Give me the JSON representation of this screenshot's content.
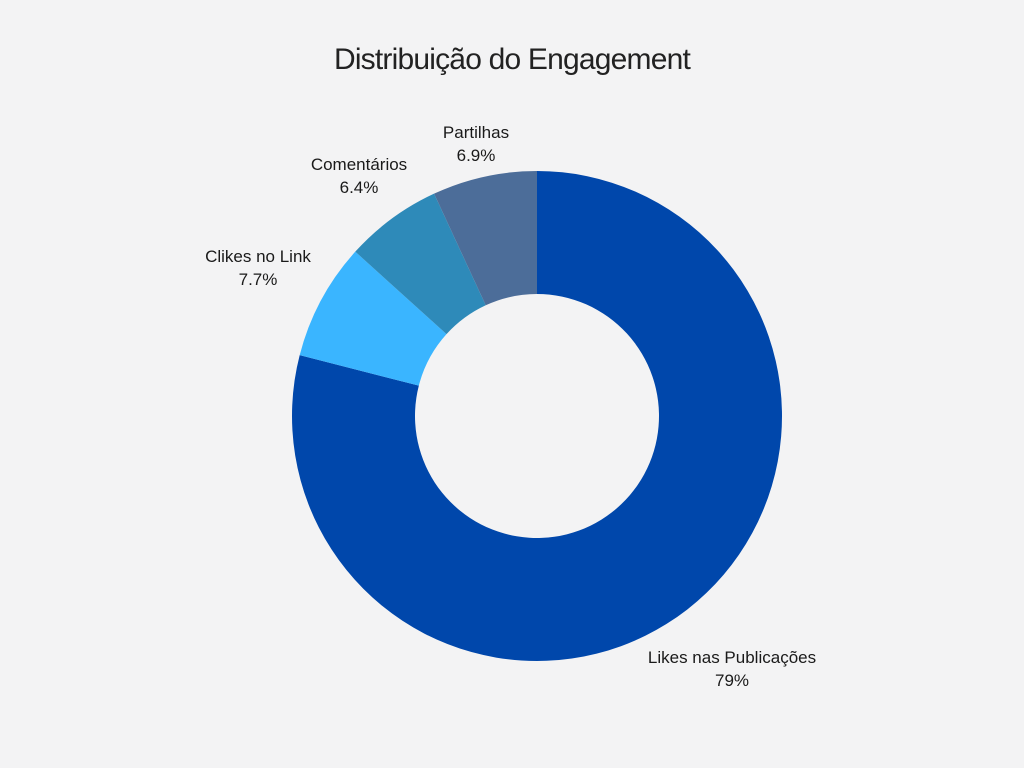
{
  "chart_data": {
    "type": "pie",
    "donut": true,
    "title": "Distribuição do Engagement",
    "slices": [
      {
        "label": "Likes nas Publicações",
        "value": 79.0,
        "value_label": "79%",
        "color": "#0047ab"
      },
      {
        "label": "Clikes no Link",
        "value": 7.7,
        "value_label": "7.7%",
        "color": "#3ab5ff"
      },
      {
        "label": "Comentários",
        "value": 6.4,
        "value_label": "6.4%",
        "color": "#2e8ab9"
      },
      {
        "label": "Partilhas",
        "value": 6.9,
        "value_label": "6.9%",
        "color": "#4c6d99"
      }
    ],
    "background": "#f3f3f4"
  }
}
